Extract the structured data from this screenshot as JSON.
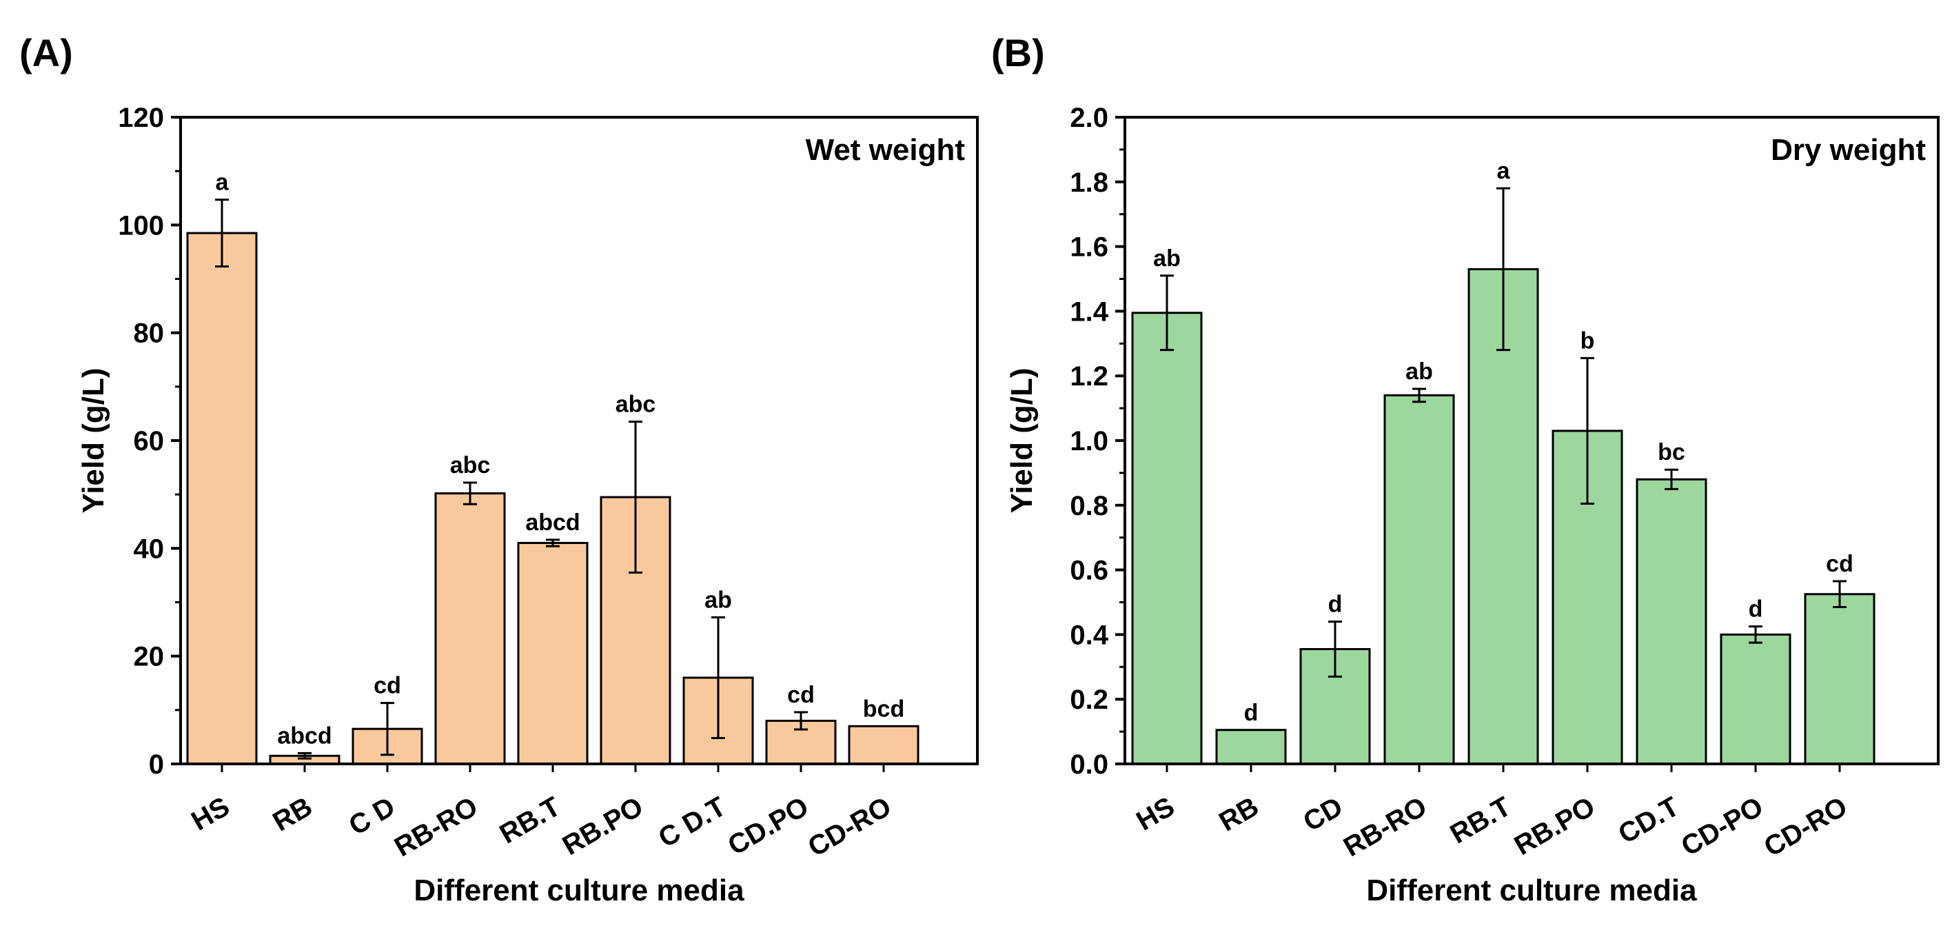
{
  "chart_data": [
    {
      "panel": "(A)",
      "type": "bar",
      "title": "Wet weight",
      "xlabel": "Different culture media",
      "ylabel": "Yield (g/L)",
      "ylim": [
        0,
        120
      ],
      "yticks": [
        0,
        20,
        40,
        60,
        80,
        100,
        120
      ],
      "ytick_labels": [
        "0",
        "20",
        "40",
        "60",
        "80",
        "100",
        "120"
      ],
      "bar_color": "#f9c99e",
      "categories": [
        "HS",
        "RB",
        "C D",
        "RB-RO",
        "RB.T",
        "RB.PO",
        "C D.T",
        "CD.PO",
        "CD-RO"
      ],
      "values": [
        98.5,
        1.5,
        6.5,
        50.2,
        41.0,
        49.5,
        16.0,
        8.0,
        7.0
      ],
      "errors": [
        6.2,
        0.5,
        4.8,
        2.0,
        0.6,
        14.0,
        11.2,
        1.6,
        0
      ],
      "significance": [
        "a",
        "abcd",
        "cd",
        "abc",
        "abcd",
        "abc",
        "ab",
        "cd",
        "bcd"
      ]
    },
    {
      "panel": "(B)",
      "type": "bar",
      "title": "Dry weight",
      "xlabel": "Different culture media",
      "ylabel": "Yield (g/L)",
      "ylim": [
        0,
        2.0
      ],
      "yticks": [
        0,
        0.2,
        0.4,
        0.6,
        0.8,
        1.0,
        1.2,
        1.4,
        1.6,
        1.8,
        2.0
      ],
      "ytick_labels": [
        "0.0",
        "0.2",
        "0.4",
        "0.6",
        "0.8",
        "1.0",
        "1.2",
        "1.4",
        "1.6",
        "1.8",
        "2.0"
      ],
      "bar_color": "#9dd79e",
      "categories": [
        "HS",
        "RB",
        "CD",
        "RB-RO",
        "RB.T",
        "RB.PO",
        "CD.T",
        "CD-PO",
        "CD-RO"
      ],
      "values": [
        1.395,
        0.105,
        0.355,
        1.14,
        1.53,
        1.03,
        0.88,
        0.4,
        0.525
      ],
      "errors": [
        0.115,
        0,
        0.085,
        0.02,
        0.25,
        0.225,
        0.03,
        0.025,
        0.04
      ],
      "significance": [
        "ab",
        "d",
        "d",
        "ab",
        "a",
        "b",
        "bc",
        "d",
        "cd"
      ]
    }
  ]
}
